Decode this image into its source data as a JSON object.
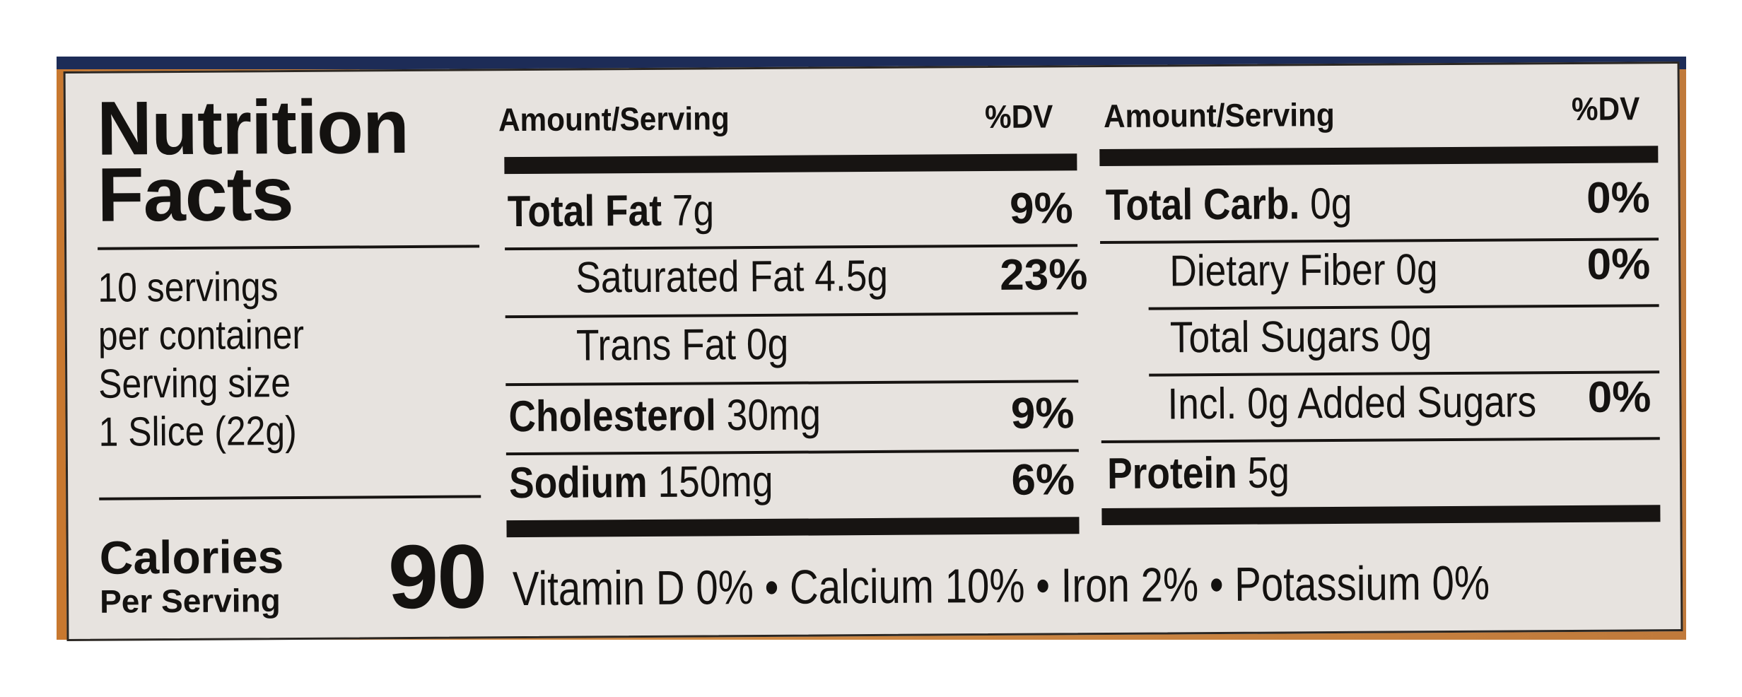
{
  "title": {
    "line1": "Nutrition",
    "line2": "Facts"
  },
  "servings": {
    "line1": "10 servings",
    "line2": "per container",
    "line3": "Serving size",
    "line4": "1 Slice (22g)"
  },
  "calories": {
    "label": "Calories",
    "sublabel": "Per Serving",
    "value": "90"
  },
  "header": {
    "amount": "Amount/Serving",
    "dv": "%DV"
  },
  "left_rows": [
    {
      "name": "Total Fat",
      "amount": "7g",
      "dv": "9%"
    },
    {
      "name": "Saturated Fat 4.5g",
      "amount": "",
      "dv": "23%"
    },
    {
      "name": "Trans Fat 0g",
      "amount": "",
      "dv": ""
    },
    {
      "name": "Cholesterol",
      "amount": "30mg",
      "dv": "9%"
    },
    {
      "name": "Sodium",
      "amount": "150mg",
      "dv": "6%"
    }
  ],
  "right_rows": [
    {
      "name": "Total Carb.",
      "amount": "0g",
      "dv": "0%"
    },
    {
      "name": "Dietary Fiber 0g",
      "amount": "",
      "dv": "0%"
    },
    {
      "name": "Total Sugars 0g",
      "amount": "",
      "dv": ""
    },
    {
      "name": "Incl. 0g Added Sugars",
      "amount": "",
      "dv": "0%"
    },
    {
      "name": "Protein",
      "amount": "5g",
      "dv": ""
    }
  ],
  "vitamins": "Vitamin D 0% • Calcium 10% • Iron 2% • Potassium 0%"
}
